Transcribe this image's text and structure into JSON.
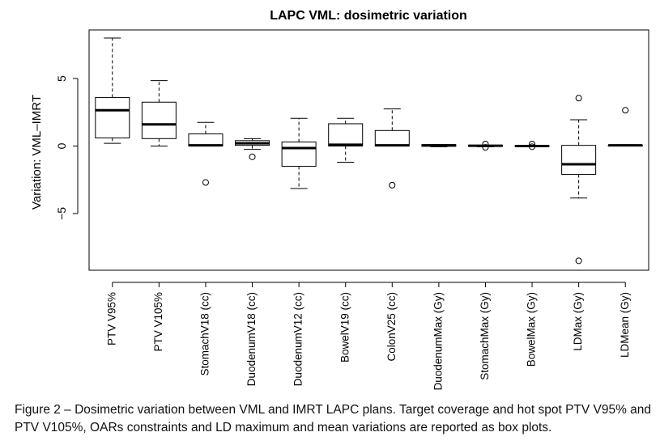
{
  "chart_data": {
    "type": "box",
    "title": "LAPC VML: dosimetric variation",
    "ylabel": "Variation: VML–IMRT",
    "xlabel": "",
    "ylim": [
      -9.2,
      8.6
    ],
    "yticks": [
      -5,
      0,
      5
    ],
    "ytick_labels": [
      "−5",
      "0",
      "5"
    ],
    "grid": false,
    "categories": [
      "PTV V95%",
      "PTV V105%",
      "StomachV18 (cc)",
      "DuodenumV18 (cc)",
      "DuodenumV12 (cc)",
      "BowelV19 (cc)",
      "ColonV25 (cc)",
      "DuodenumMax (Gy)",
      "StomachMax (Gy)",
      "BowelMax (Gy)",
      "LDMax (Gy)",
      "LDMean (Gy)"
    ],
    "boxes": [
      {
        "whisker_low": 0.2,
        "q1": 0.6,
        "median": 2.65,
        "q3": 3.6,
        "whisker_high": 8.0,
        "outliers": []
      },
      {
        "whisker_low": 0.0,
        "q1": 0.55,
        "median": 1.6,
        "q3": 3.25,
        "whisker_high": 4.85,
        "outliers": []
      },
      {
        "whisker_low": 0.0,
        "q1": 0.0,
        "median": 0.05,
        "q3": 0.9,
        "whisker_high": 1.75,
        "outliers": [
          -2.7
        ]
      },
      {
        "whisker_low": -0.25,
        "q1": 0.05,
        "median": 0.2,
        "q3": 0.4,
        "whisker_high": 0.55,
        "outliers": [
          -0.8
        ]
      },
      {
        "whisker_low": -3.15,
        "q1": -1.5,
        "median": -0.15,
        "q3": 0.3,
        "whisker_high": 2.05,
        "outliers": []
      },
      {
        "whisker_low": -1.2,
        "q1": 0.0,
        "median": 0.1,
        "q3": 1.65,
        "whisker_high": 2.05,
        "outliers": []
      },
      {
        "whisker_low": 0.0,
        "q1": 0.0,
        "median": 0.05,
        "q3": 1.15,
        "whisker_high": 2.75,
        "outliers": [
          -2.9
        ]
      },
      {
        "whisker_low": -0.05,
        "q1": -0.02,
        "median": 0.05,
        "q3": 0.1,
        "whisker_high": 0.12,
        "outliers": []
      },
      {
        "whisker_low": -0.05,
        "q1": -0.02,
        "median": 0.02,
        "q3": 0.05,
        "whisker_high": 0.05,
        "outliers": [
          0.15,
          -0.1
        ]
      },
      {
        "whisker_low": -0.05,
        "q1": -0.02,
        "median": 0.0,
        "q3": 0.03,
        "whisker_high": 0.05,
        "outliers": [
          0.15,
          -0.05
        ]
      },
      {
        "whisker_low": -3.85,
        "q1": -2.1,
        "median": -1.35,
        "q3": 0.05,
        "whisker_high": 1.95,
        "outliers": [
          3.55,
          -8.5
        ]
      },
      {
        "whisker_low": 0.0,
        "q1": 0.0,
        "median": 0.05,
        "q3": 0.07,
        "whisker_high": 0.1,
        "outliers": [
          2.65
        ]
      }
    ]
  },
  "caption": "Figure 2 – Dosimetric variation between VML and IMRT LAPC plans. Target coverage and hot spot PTV V95% and PTV V105%, OARs constraints and LD maximum and mean variations are reported as box plots."
}
